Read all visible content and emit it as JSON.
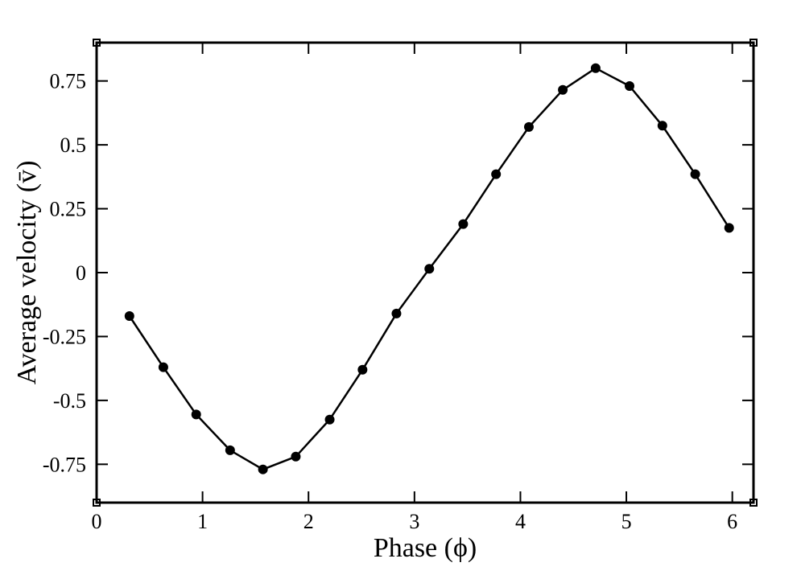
{
  "chart_data": {
    "type": "line",
    "title": "",
    "xlabel": "Phase (ϕ)",
    "ylabel": "Average velocity (v̄)",
    "xlim": [
      0,
      6.2
    ],
    "ylim": [
      -0.9,
      0.9
    ],
    "x_ticks": [
      0,
      1,
      2,
      3,
      4,
      5,
      6
    ],
    "x_tick_labels": [
      "0",
      "1",
      "2",
      "3",
      "4",
      "5",
      "6"
    ],
    "y_ticks": [
      -0.75,
      -0.5,
      -0.25,
      0,
      0.25,
      0.5,
      0.75
    ],
    "y_tick_labels": [
      "-0.75",
      "-0.5",
      "-0.25",
      "0",
      "0.25",
      "0.5",
      "0.75"
    ],
    "grid": false,
    "legend": "none",
    "series": [
      {
        "marker": "filled-circle",
        "color": "#000000",
        "x": [
          0.31,
          0.63,
          0.94,
          1.26,
          1.57,
          1.88,
          2.2,
          2.51,
          2.83,
          3.14,
          3.46,
          3.77,
          4.08,
          4.4,
          4.71,
          5.03,
          5.34,
          5.65,
          5.97
        ],
        "y": [
          -0.17,
          -0.37,
          -0.555,
          -0.695,
          -0.77,
          -0.72,
          -0.575,
          -0.38,
          -0.16,
          0.015,
          0.19,
          0.385,
          0.57,
          0.715,
          0.8,
          0.73,
          0.575,
          0.385,
          0.175
        ]
      }
    ]
  }
}
